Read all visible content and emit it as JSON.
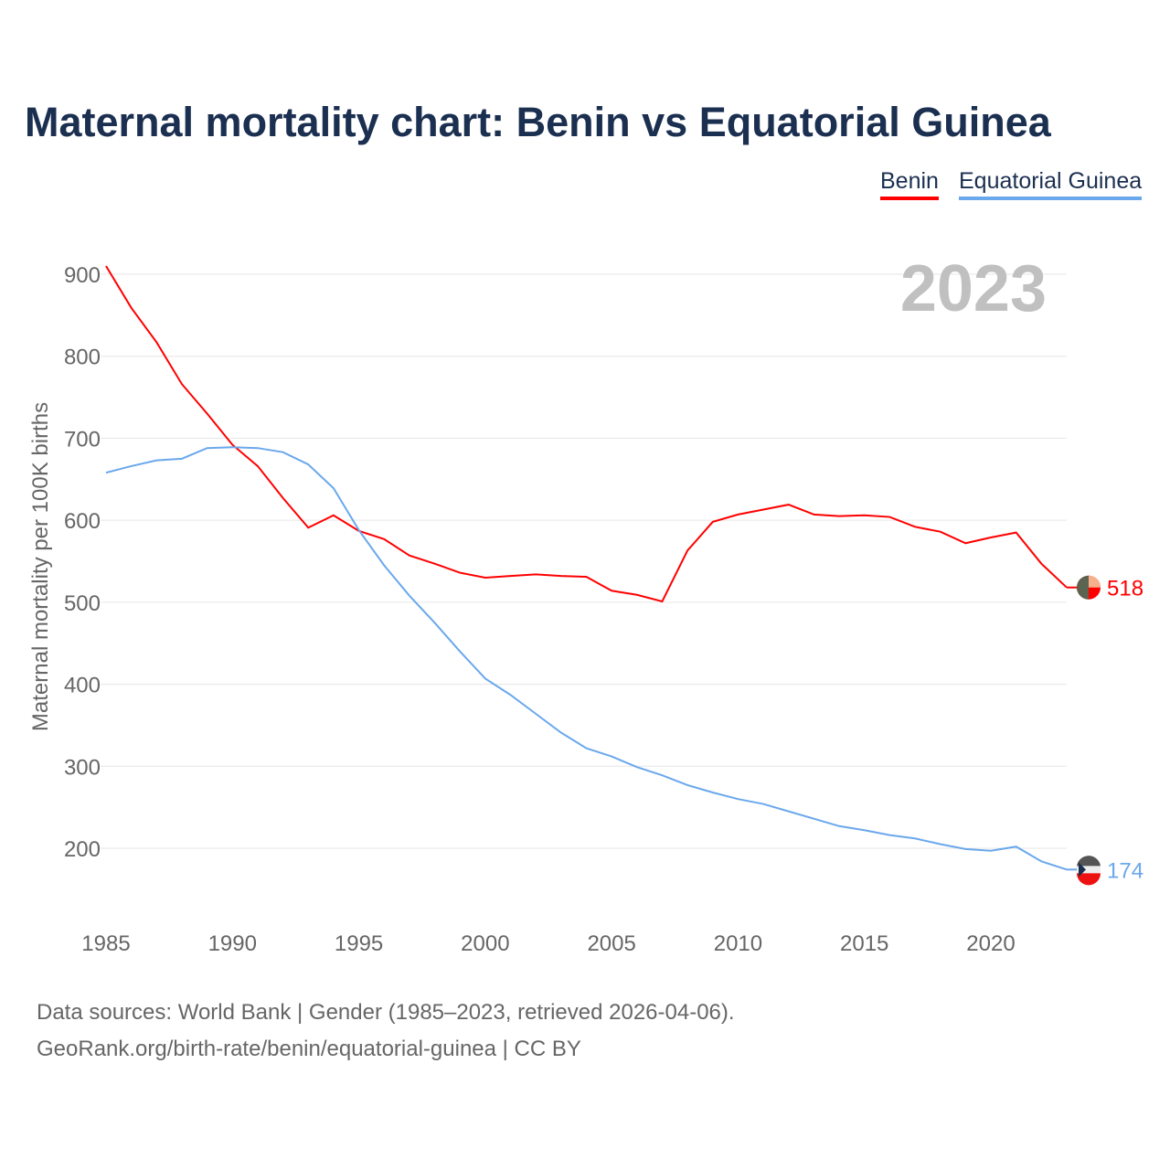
{
  "title": "Maternal mortality chart: Benin vs Equatorial Guinea",
  "footer": {
    "line1": "Data sources: World Bank | Gender (1985–2023, retrieved 2026-04-06).",
    "line2": "GeoRank.org/birth-rate/benin/equatorial-guinea | CC BY"
  },
  "chart_data": {
    "type": "line",
    "title": "Maternal mortality chart: Benin vs Equatorial Guinea",
    "ylabel": "Maternal mortality per 100K births",
    "xlabel": "",
    "year_label": "2023",
    "xlim": [
      1985,
      2023
    ],
    "ylim": [
      130,
      950
    ],
    "yticks": [
      200,
      300,
      400,
      500,
      600,
      700,
      800,
      900
    ],
    "xticks": [
      1985,
      1990,
      1995,
      2000,
      2005,
      2010,
      2015,
      2020
    ],
    "grid": true,
    "legend_placement": "top-right",
    "x": [
      1985,
      1986,
      1987,
      1988,
      1989,
      1990,
      1991,
      1992,
      1993,
      1994,
      1995,
      1996,
      1997,
      1998,
      1999,
      2000,
      2001,
      2002,
      2003,
      2004,
      2005,
      2006,
      2007,
      2008,
      2009,
      2010,
      2011,
      2012,
      2013,
      2014,
      2015,
      2016,
      2017,
      2018,
      2019,
      2020,
      2021,
      2022,
      2023
    ],
    "series": [
      {
        "name": "Benin",
        "color": "#ff0000",
        "end_label": "518",
        "values": [
          910,
          859,
          817,
          766,
          730,
          692,
          666,
          627,
          591,
          606,
          587,
          577,
          557,
          547,
          536,
          530,
          532,
          534,
          532,
          531,
          514,
          509,
          501,
          563,
          598,
          607,
          613,
          619,
          607,
          605,
          606,
          604,
          592,
          586,
          572,
          579,
          585,
          547,
          518
        ]
      },
      {
        "name": "Equatorial Guinea",
        "color": "#6aa8ec",
        "end_label": "174",
        "values": [
          658,
          666,
          673,
          675,
          688,
          689,
          688,
          683,
          668,
          639,
          588,
          545,
          508,
          475,
          440,
          407,
          387,
          364,
          341,
          322,
          312,
          299,
          289,
          277,
          268,
          260,
          254,
          245,
          236,
          227,
          222,
          216,
          212,
          205,
          199,
          197,
          202,
          184,
          174
        ]
      }
    ]
  }
}
